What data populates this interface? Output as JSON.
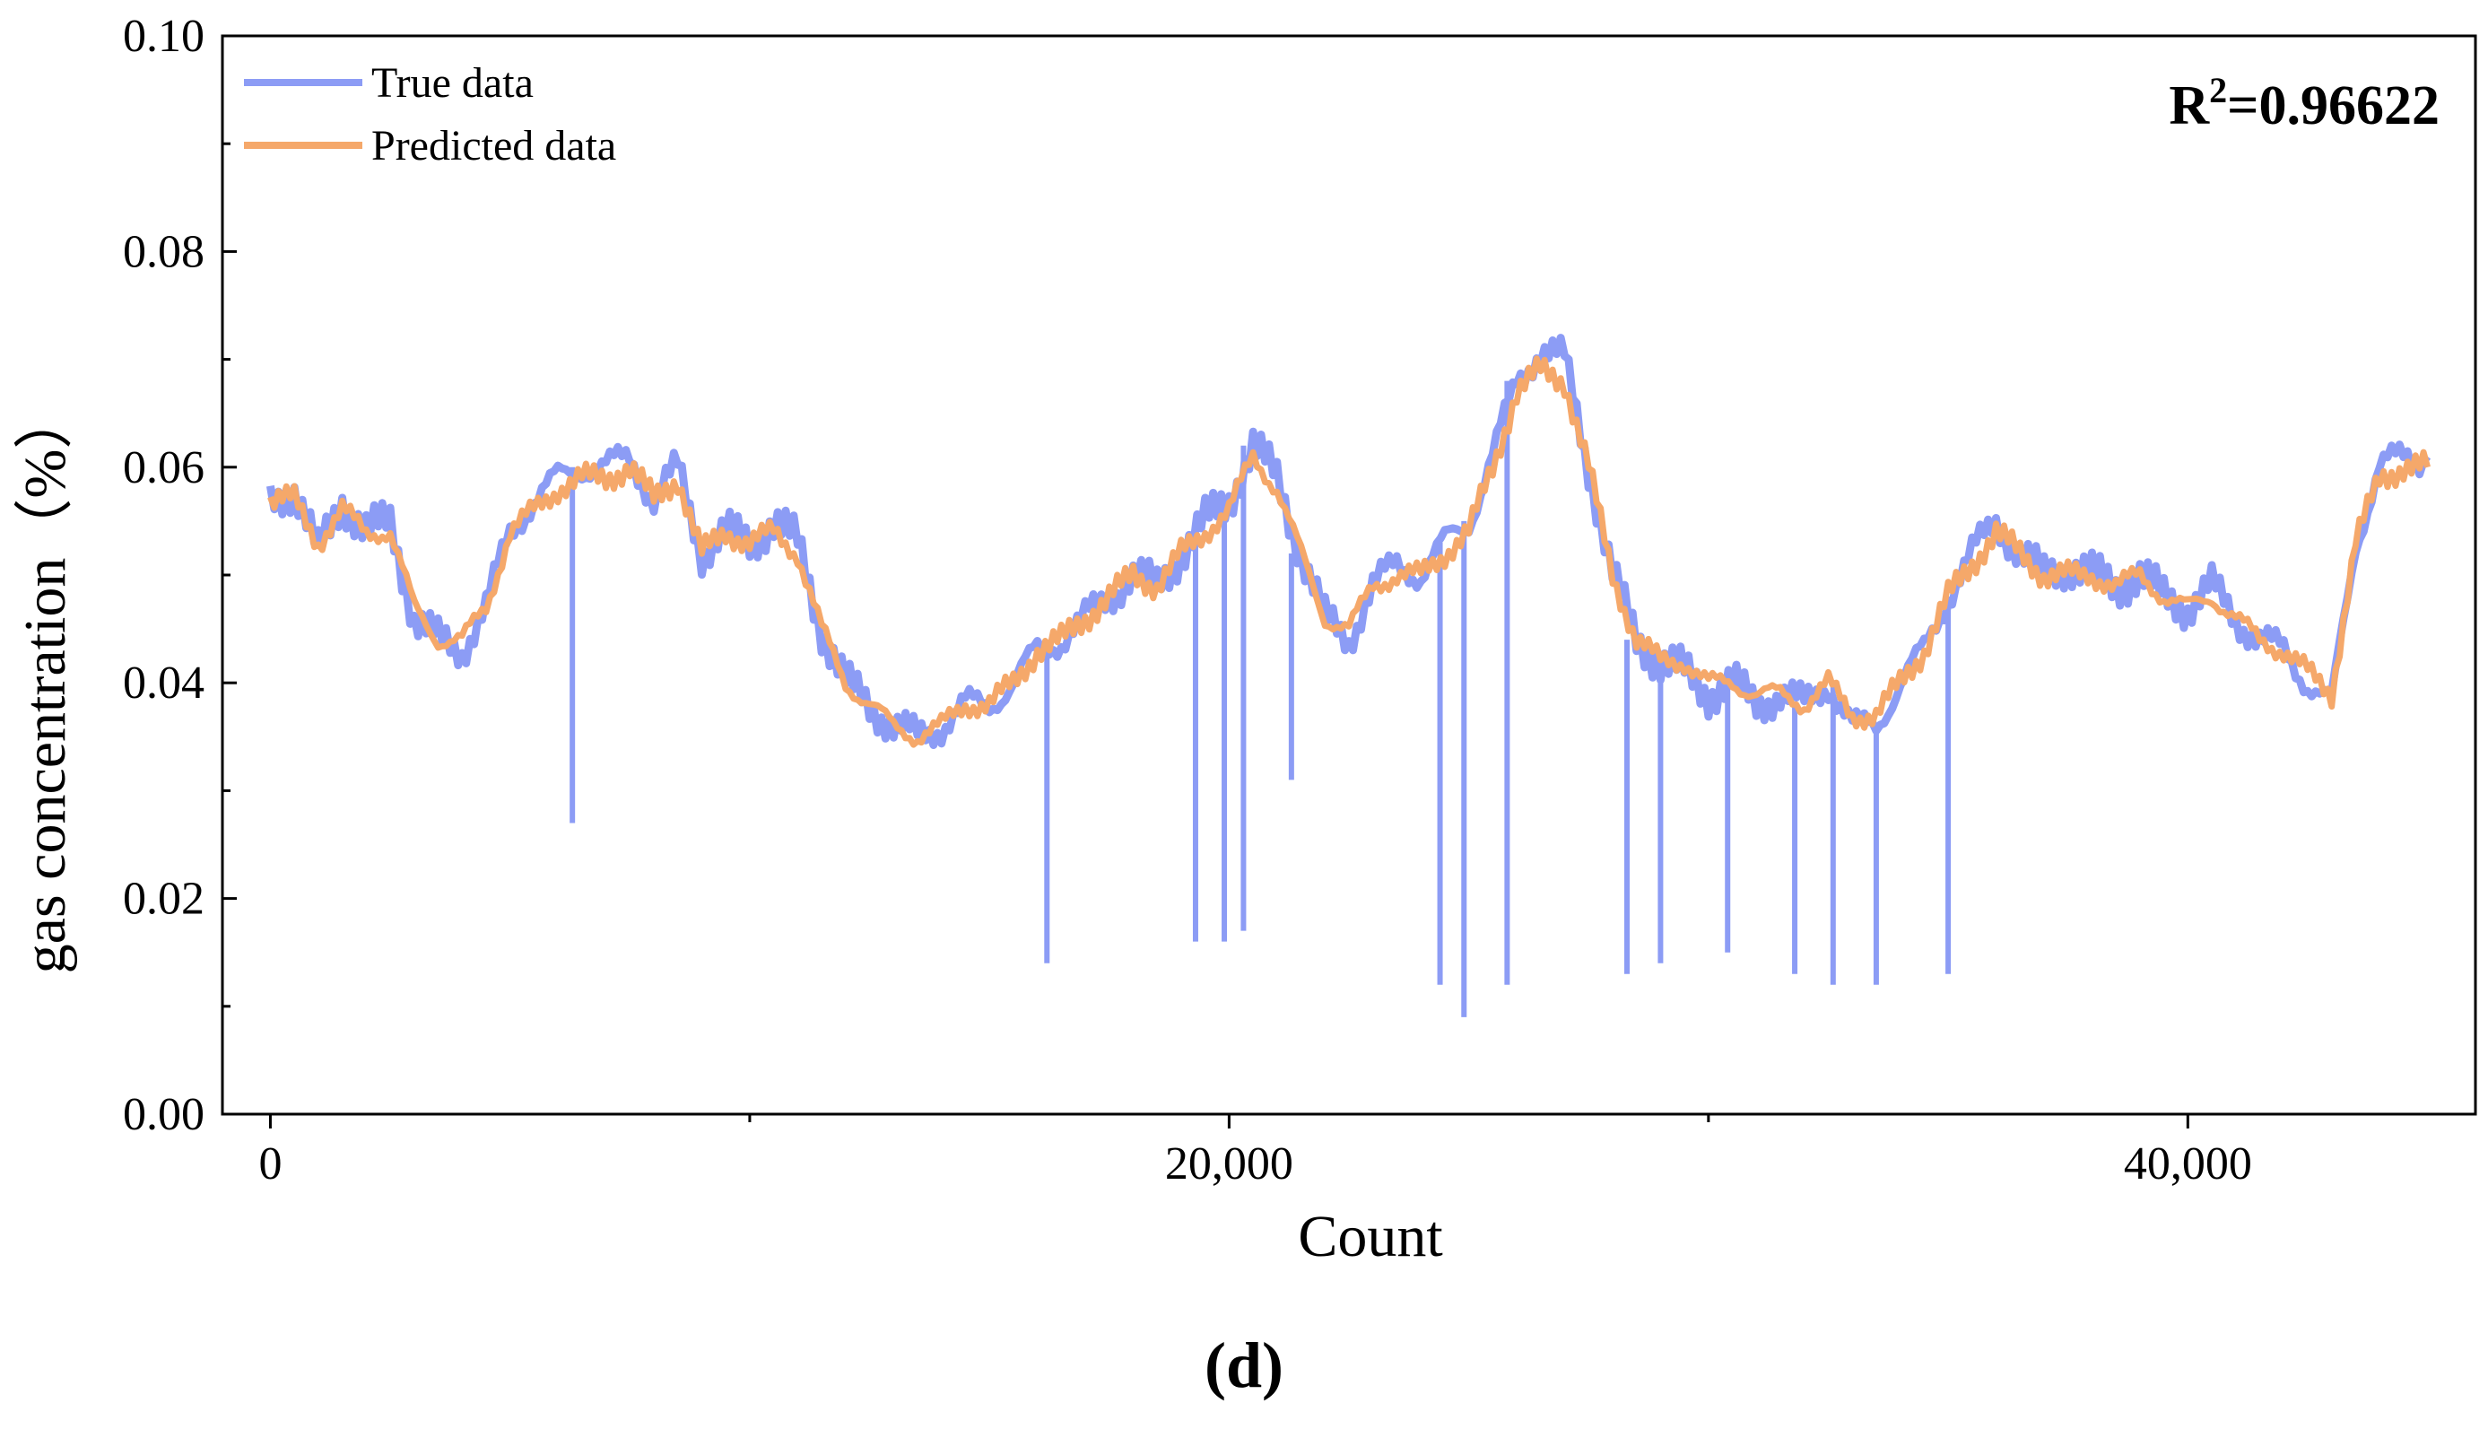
{
  "chart_data": {
    "type": "line",
    "title": "",
    "xlabel": "Count",
    "ylabel": "gas concentration（%）",
    "xlim": [
      -1000,
      46000
    ],
    "ylim": [
      0.0,
      0.1
    ],
    "x_ticks": [
      0,
      20000,
      40000
    ],
    "x_tick_labels": [
      "0",
      "20,000",
      "40,000"
    ],
    "y_ticks": [
      0.0,
      0.02,
      0.04,
      0.06,
      0.08,
      0.1
    ],
    "y_tick_labels": [
      "0.00",
      "0.02",
      "0.04",
      "0.06",
      "0.08",
      "0.10"
    ],
    "grid": false,
    "legend_position": "top-left",
    "annotation": {
      "r2_prefix": "R",
      "r2_sup": "2",
      "r2_value": "=0.96622"
    },
    "panel_label": "(d)",
    "x": [
      0,
      500,
      1000,
      1500,
      2000,
      2500,
      3000,
      3500,
      4000,
      4500,
      5000,
      5500,
      6000,
      6500,
      7000,
      7500,
      8000,
      8500,
      9000,
      9500,
      10000,
      10500,
      11000,
      11500,
      12000,
      12500,
      13000,
      13500,
      14000,
      14500,
      15000,
      15500,
      16000,
      16500,
      17000,
      17500,
      18000,
      18500,
      19000,
      19500,
      20000,
      20500,
      21000,
      21500,
      22000,
      22500,
      23000,
      23500,
      24000,
      24500,
      25000,
      25500,
      26000,
      26500,
      27000,
      27500,
      28000,
      28500,
      29000,
      29500,
      30000,
      30500,
      31000,
      31500,
      32000,
      32500,
      33000,
      33500,
      34000,
      34500,
      35000,
      35500,
      36000,
      36500,
      37000,
      37500,
      38000,
      38500,
      39000,
      39500,
      40000,
      40500,
      41000,
      41500,
      42000,
      42500,
      43000,
      43500,
      44000,
      44500,
      45000
    ],
    "series": [
      {
        "name": "True data",
        "color": "#8c9cf5",
        "values": [
          0.057,
          0.058,
          0.052,
          0.057,
          0.054,
          0.055,
          0.046,
          0.044,
          0.043,
          0.047,
          0.054,
          0.057,
          0.059,
          0.06,
          0.06,
          0.061,
          0.057,
          0.06,
          0.052,
          0.054,
          0.053,
          0.055,
          0.053,
          0.045,
          0.04,
          0.038,
          0.036,
          0.035,
          0.036,
          0.038,
          0.038,
          0.04,
          0.043,
          0.044,
          0.046,
          0.048,
          0.05,
          0.049,
          0.052,
          0.055,
          0.057,
          0.062,
          0.059,
          0.052,
          0.046,
          0.044,
          0.049,
          0.051,
          0.05,
          0.053,
          0.055,
          0.061,
          0.068,
          0.071,
          0.07,
          0.06,
          0.05,
          0.044,
          0.042,
          0.041,
          0.039,
          0.04,
          0.038,
          0.039,
          0.038,
          0.04,
          0.036,
          0.036,
          0.04,
          0.043,
          0.048,
          0.052,
          0.055,
          0.052,
          0.05,
          0.051,
          0.05,
          0.049,
          0.05,
          0.048,
          0.047,
          0.049,
          0.046,
          0.044,
          0.043,
          0.04,
          0.038,
          0.053,
          0.06,
          0.061,
          0.061
        ],
        "drops": [
          [
            6300,
            0.027
          ],
          [
            16200,
            0.014
          ],
          [
            19300,
            0.016
          ],
          [
            19900,
            0.016
          ],
          [
            20300,
            0.017
          ],
          [
            21300,
            0.031
          ],
          [
            24400,
            0.012
          ],
          [
            24900,
            0.009
          ],
          [
            25800,
            0.012
          ],
          [
            28300,
            0.013
          ],
          [
            29000,
            0.014
          ],
          [
            30400,
            0.015
          ],
          [
            31800,
            0.013
          ],
          [
            32600,
            0.012
          ],
          [
            33500,
            0.012
          ],
          [
            35000,
            0.013
          ]
        ]
      },
      {
        "name": "Predicted data",
        "color": "#f5a86a",
        "values": [
          0.057,
          0.057,
          0.053,
          0.056,
          0.054,
          0.054,
          0.047,
          0.044,
          0.044,
          0.047,
          0.054,
          0.056,
          0.058,
          0.059,
          0.059,
          0.06,
          0.057,
          0.059,
          0.052,
          0.054,
          0.053,
          0.054,
          0.052,
          0.045,
          0.04,
          0.038,
          0.036,
          0.035,
          0.036,
          0.038,
          0.038,
          0.04,
          0.043,
          0.044,
          0.046,
          0.048,
          0.05,
          0.049,
          0.052,
          0.054,
          0.056,
          0.061,
          0.058,
          0.052,
          0.046,
          0.045,
          0.049,
          0.05,
          0.05,
          0.052,
          0.054,
          0.06,
          0.067,
          0.069,
          0.068,
          0.06,
          0.05,
          0.044,
          0.042,
          0.042,
          0.04,
          0.04,
          0.039,
          0.039,
          0.038,
          0.04,
          0.037,
          0.037,
          0.04,
          0.043,
          0.048,
          0.051,
          0.054,
          0.052,
          0.05,
          0.05,
          0.05,
          0.049,
          0.05,
          0.048,
          0.047,
          0.048,
          0.046,
          0.044,
          0.043,
          0.041,
          0.039,
          0.053,
          0.059,
          0.06,
          0.06
        ]
      }
    ]
  }
}
